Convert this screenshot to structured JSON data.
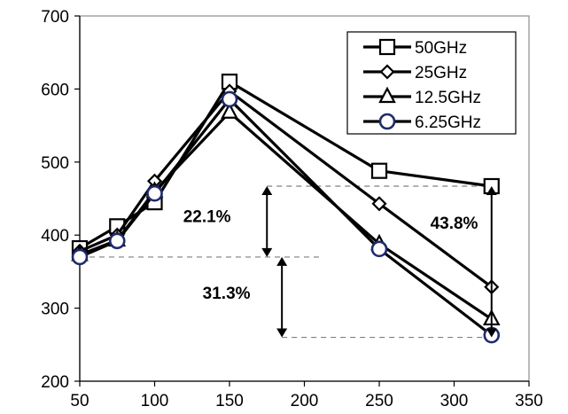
{
  "chart_data": {
    "type": "line",
    "title": "",
    "xlabel": "",
    "ylabel": "",
    "xlim": [
      50,
      350
    ],
    "ylim": [
      200,
      700
    ],
    "x_ticks": [
      50,
      100,
      150,
      200,
      250,
      300,
      350
    ],
    "y_ticks": [
      200,
      300,
      400,
      500,
      600,
      700
    ],
    "grid": false,
    "legend_position": "top-right",
    "series": [
      {
        "name": "50GHz",
        "marker": "square",
        "color": "#000000",
        "x": [
          50,
          75,
          100,
          150,
          250,
          325
        ],
        "y": [
          382,
          412,
          445,
          610,
          488,
          467
        ]
      },
      {
        "name": "25GHz",
        "marker": "diamond",
        "color": "#000000",
        "x": [
          50,
          75,
          100,
          150,
          250,
          325
        ],
        "y": [
          378,
          400,
          474,
          597,
          443,
          329
        ]
      },
      {
        "name": "12.5GHz",
        "marker": "triangle",
        "color": "#000000",
        "x": [
          50,
          75,
          100,
          150,
          250,
          325
        ],
        "y": [
          373,
          393,
          460,
          568,
          388,
          285
        ]
      },
      {
        "name": "6.25GHz",
        "marker": "circle",
        "color": "#1f2a6e",
        "x": [
          50,
          75,
          100,
          150,
          250,
          325
        ],
        "y": [
          370,
          392,
          457,
          586,
          381,
          263
        ]
      }
    ],
    "reference_lines": [
      {
        "y": 467,
        "x_start": 175,
        "x_end": 325
      },
      {
        "y": 370,
        "x_start": 50,
        "x_end": 210
      },
      {
        "y": 260,
        "x_start": 185,
        "x_end": 325
      }
    ],
    "annotations": [
      {
        "text": "22.1%",
        "arrow_x": 175,
        "from_y": 467,
        "to_y": 370,
        "label_x": 135,
        "label_y": 418
      },
      {
        "text": "31.3%",
        "arrow_x": 185,
        "from_y": 370,
        "to_y": 260,
        "label_x": 148,
        "label_y": 313
      },
      {
        "text": "43.8%",
        "arrow_x": 325,
        "from_y": 467,
        "to_y": 260,
        "label_x": 300,
        "label_y": 409
      }
    ]
  }
}
